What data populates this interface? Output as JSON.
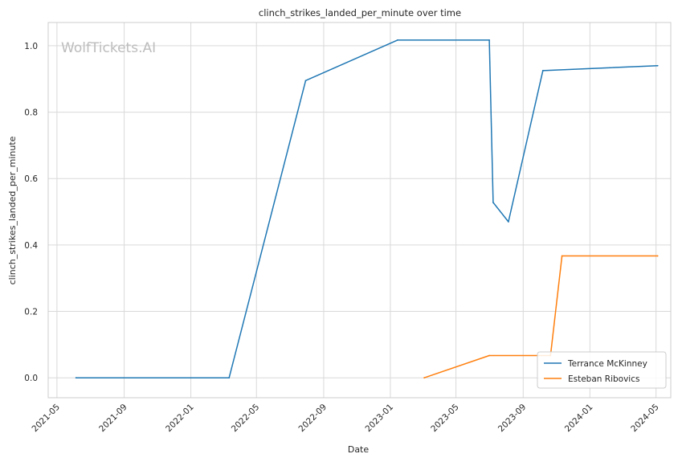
{
  "watermark": "WolfTickets.AI",
  "chart_data": {
    "type": "line",
    "title": "clinch_strikes_landed_per_minute over time",
    "xlabel": "Date",
    "ylabel": "clinch_strikes_landed_per_minute",
    "x_is_date": true,
    "xlim": [
      "2021-04-15",
      "2024-05-28"
    ],
    "ylim": [
      -0.06,
      1.07
    ],
    "x_ticks": [
      "2021-05",
      "2021-09",
      "2022-01",
      "2022-05",
      "2022-09",
      "2023-01",
      "2023-05",
      "2023-09",
      "2024-01",
      "2024-05"
    ],
    "y_ticks": [
      0.0,
      0.2,
      0.4,
      0.6,
      0.8,
      1.0
    ],
    "y_tick_labels": [
      "0.0",
      "0.2",
      "0.4",
      "0.6",
      "0.8",
      "1.0"
    ],
    "grid": true,
    "legend_position": "lower-right",
    "series": [
      {
        "name": "Terrance McKinney",
        "color": "#1f77b4",
        "x": [
          "2021-06-05",
          "2022-03-12",
          "2022-07-30",
          "2023-01-14",
          "2023-07-01",
          "2023-07-08",
          "2023-08-05",
          "2023-10-07",
          "2024-05-04"
        ],
        "y": [
          0.0,
          0.0,
          0.895,
          1.017,
          1.017,
          0.528,
          0.47,
          0.925,
          0.94
        ]
      },
      {
        "name": "Esteban Ribovics",
        "color": "#ff7f0e",
        "x": [
          "2023-03-04",
          "2023-07-01",
          "2023-10-21",
          "2023-11-11",
          "2024-05-04"
        ],
        "y": [
          0.0,
          0.067,
          0.067,
          0.367,
          0.367
        ]
      }
    ]
  }
}
